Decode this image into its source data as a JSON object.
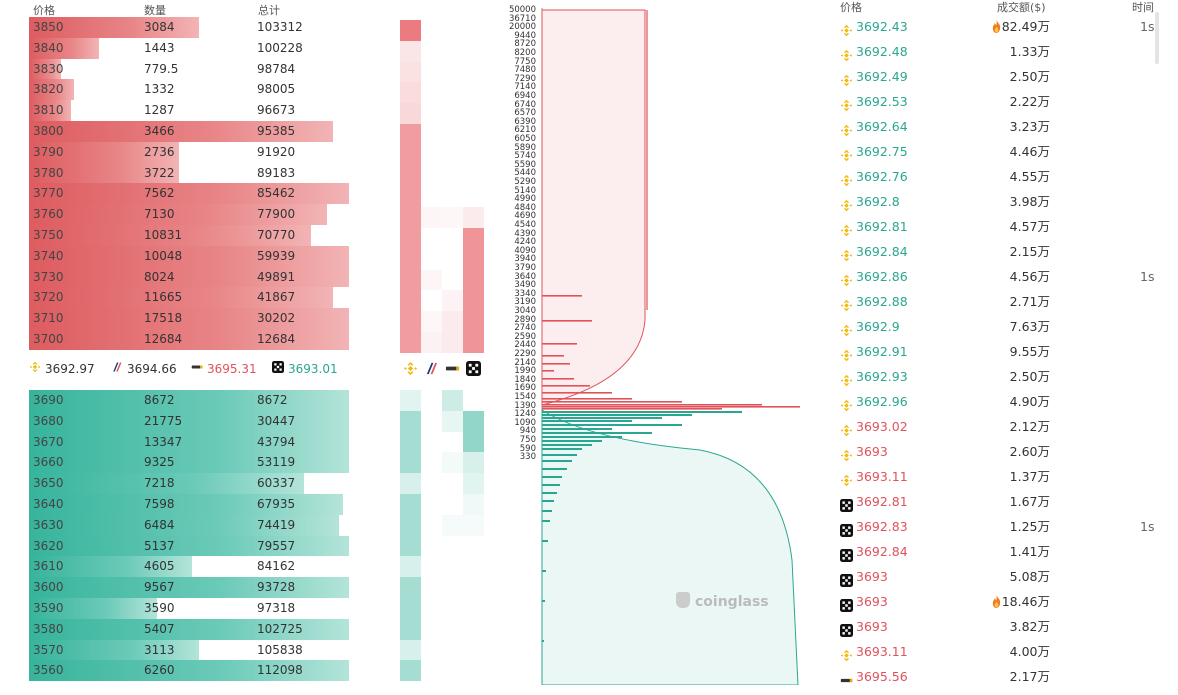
{
  "orderbook": {
    "headers": {
      "price": "价格",
      "qty": "数量",
      "total": "总计"
    },
    "asks": [
      {
        "price": "3850",
        "qty": "3084",
        "total": "103312",
        "bar": 0.53
      },
      {
        "price": "3840",
        "qty": "1443",
        "total": "100228",
        "bar": 0.22
      },
      {
        "price": "3830",
        "qty": "779.5",
        "total": "98784",
        "bar": 0.1
      },
      {
        "price": "3820",
        "qty": "1332",
        "total": "98005",
        "bar": 0.14
      },
      {
        "price": "3810",
        "qty": "1287",
        "total": "96673",
        "bar": 0.13
      },
      {
        "price": "3800",
        "qty": "3466",
        "total": "95385",
        "bar": 0.95
      },
      {
        "price": "3790",
        "qty": "2736",
        "total": "91920",
        "bar": 0.47
      },
      {
        "price": "3780",
        "qty": "3722",
        "total": "89183",
        "bar": 0.47
      },
      {
        "price": "3770",
        "qty": "7562",
        "total": "85462",
        "bar": 1.0
      },
      {
        "price": "3760",
        "qty": "7130",
        "total": "77900",
        "bar": 0.93
      },
      {
        "price": "3750",
        "qty": "10831",
        "total": "70770",
        "bar": 0.88
      },
      {
        "price": "3740",
        "qty": "10048",
        "total": "59939",
        "bar": 1.0
      },
      {
        "price": "3730",
        "qty": "8024",
        "total": "49891",
        "bar": 1.0
      },
      {
        "price": "3720",
        "qty": "11665",
        "total": "41867",
        "bar": 0.95
      },
      {
        "price": "3710",
        "qty": "17518",
        "total": "30202",
        "bar": 1.0
      },
      {
        "price": "3700",
        "qty": "12684",
        "total": "12684",
        "bar": 1.0
      }
    ],
    "bids": [
      {
        "price": "3690",
        "qty": "8672",
        "total": "8672",
        "bar": 1.0
      },
      {
        "price": "3680",
        "qty": "21775",
        "total": "30447",
        "bar": 1.0
      },
      {
        "price": "3670",
        "qty": "13347",
        "total": "43794",
        "bar": 1.0
      },
      {
        "price": "3660",
        "qty": "9325",
        "total": "53119",
        "bar": 1.0
      },
      {
        "price": "3650",
        "qty": "7218",
        "total": "60337",
        "bar": 0.86
      },
      {
        "price": "3640",
        "qty": "7598",
        "total": "67935",
        "bar": 0.98
      },
      {
        "price": "3630",
        "qty": "6484",
        "total": "74419",
        "bar": 0.97
      },
      {
        "price": "3620",
        "qty": "5137",
        "total": "79557",
        "bar": 1.0
      },
      {
        "price": "3610",
        "qty": "4605",
        "total": "84162",
        "bar": 0.51
      },
      {
        "price": "3600",
        "qty": "9567",
        "total": "93728",
        "bar": 1.0
      },
      {
        "price": "3590",
        "qty": "3590",
        "total": "97318",
        "bar": 0.4
      },
      {
        "price": "3580",
        "qty": "5407",
        "total": "102725",
        "bar": 1.0
      },
      {
        "price": "3570",
        "qty": "3113",
        "total": "105838",
        "bar": 0.53
      },
      {
        "price": "3560",
        "qty": "6260",
        "total": "112098",
        "bar": 1.0
      }
    ],
    "exchanges": [
      {
        "icon": "binance-icon",
        "price": "3692.97",
        "color": "#333333"
      },
      {
        "icon": "huobi-icon",
        "price": "3694.66",
        "color": "#333333"
      },
      {
        "icon": "bybit-icon",
        "price": "3695.31",
        "color": "#e1525b"
      },
      {
        "icon": "okx-icon",
        "price": "3693.01",
        "color": "#2aa790"
      }
    ]
  },
  "depth": {
    "ticks": [
      "50000",
      "36710",
      "20000",
      "9440",
      "8720",
      "8200",
      "7750",
      "7480",
      "7290",
      "7140",
      "6940",
      "6740",
      "6570",
      "6390",
      "6210",
      "6050",
      "5890",
      "5740",
      "5590",
      "5440",
      "5290",
      "5140",
      "4990",
      "4840",
      "4690",
      "4540",
      "4390",
      "4240",
      "4090",
      "3940",
      "3790",
      "3640",
      "3490",
      "3340",
      "3190",
      "3040",
      "2890",
      "2740",
      "2590",
      "2440",
      "2290",
      "2140",
      "1990",
      "1840",
      "1690",
      "1540",
      "1390",
      "1240",
      "1090",
      "940",
      "750",
      "590",
      "330"
    ],
    "watermark": "coinglass"
  },
  "trades": {
    "headers": {
      "price": "价格",
      "amount": "成交额($)",
      "time": "时间"
    },
    "rows": [
      {
        "icon": "binance-icon",
        "price": "3692.43",
        "dir": "up",
        "amount": "82.49万",
        "fire": true,
        "time": "1s"
      },
      {
        "icon": "binance-icon",
        "price": "3692.48",
        "dir": "up",
        "amount": "1.33万",
        "fire": false,
        "time": ""
      },
      {
        "icon": "binance-icon",
        "price": "3692.49",
        "dir": "up",
        "amount": "2.50万",
        "fire": false,
        "time": ""
      },
      {
        "icon": "binance-icon",
        "price": "3692.53",
        "dir": "up",
        "amount": "2.22万",
        "fire": false,
        "time": ""
      },
      {
        "icon": "binance-icon",
        "price": "3692.64",
        "dir": "up",
        "amount": "3.23万",
        "fire": false,
        "time": ""
      },
      {
        "icon": "binance-icon",
        "price": "3692.75",
        "dir": "up",
        "amount": "4.46万",
        "fire": false,
        "time": ""
      },
      {
        "icon": "binance-icon",
        "price": "3692.76",
        "dir": "up",
        "amount": "4.55万",
        "fire": false,
        "time": ""
      },
      {
        "icon": "binance-icon",
        "price": "3692.8",
        "dir": "up",
        "amount": "3.98万",
        "fire": false,
        "time": ""
      },
      {
        "icon": "binance-icon",
        "price": "3692.81",
        "dir": "up",
        "amount": "4.57万",
        "fire": false,
        "time": ""
      },
      {
        "icon": "binance-icon",
        "price": "3692.84",
        "dir": "up",
        "amount": "2.15万",
        "fire": false,
        "time": ""
      },
      {
        "icon": "binance-icon",
        "price": "3692.86",
        "dir": "up",
        "amount": "4.56万",
        "fire": false,
        "time": "1s"
      },
      {
        "icon": "binance-icon",
        "price": "3692.88",
        "dir": "up",
        "amount": "2.71万",
        "fire": false,
        "time": ""
      },
      {
        "icon": "binance-icon",
        "price": "3692.9",
        "dir": "up",
        "amount": "7.63万",
        "fire": false,
        "time": ""
      },
      {
        "icon": "binance-icon",
        "price": "3692.91",
        "dir": "up",
        "amount": "9.55万",
        "fire": false,
        "time": ""
      },
      {
        "icon": "binance-icon",
        "price": "3692.93",
        "dir": "up",
        "amount": "2.50万",
        "fire": false,
        "time": ""
      },
      {
        "icon": "binance-icon",
        "price": "3692.96",
        "dir": "up",
        "amount": "4.90万",
        "fire": false,
        "time": ""
      },
      {
        "icon": "binance-icon",
        "price": "3693.02",
        "dir": "down",
        "amount": "2.12万",
        "fire": false,
        "time": ""
      },
      {
        "icon": "binance-icon",
        "price": "3693",
        "dir": "down",
        "amount": "2.60万",
        "fire": false,
        "time": ""
      },
      {
        "icon": "binance-icon",
        "price": "3693.11",
        "dir": "down",
        "amount": "1.37万",
        "fire": false,
        "time": ""
      },
      {
        "icon": "okx-icon",
        "price": "3692.81",
        "dir": "down",
        "amount": "1.67万",
        "fire": false,
        "time": ""
      },
      {
        "icon": "okx-icon",
        "price": "3692.83",
        "dir": "down",
        "amount": "1.25万",
        "fire": false,
        "time": "1s"
      },
      {
        "icon": "okx-icon",
        "price": "3692.84",
        "dir": "down",
        "amount": "1.41万",
        "fire": false,
        "time": ""
      },
      {
        "icon": "okx-icon",
        "price": "3693",
        "dir": "down",
        "amount": "5.08万",
        "fire": false,
        "time": ""
      },
      {
        "icon": "okx-icon",
        "price": "3693",
        "dir": "down",
        "amount": "18.46万",
        "fire": true,
        "time": ""
      },
      {
        "icon": "okx-icon",
        "price": "3693",
        "dir": "down",
        "amount": "3.82万",
        "fire": false,
        "time": ""
      },
      {
        "icon": "binance-icon",
        "price": "3693.11",
        "dir": "down",
        "amount": "4.00万",
        "fire": false,
        "time": ""
      },
      {
        "icon": "bybit-icon",
        "price": "3695.56",
        "dir": "down",
        "amount": "2.17万",
        "fire": false,
        "time": ""
      }
    ]
  }
}
